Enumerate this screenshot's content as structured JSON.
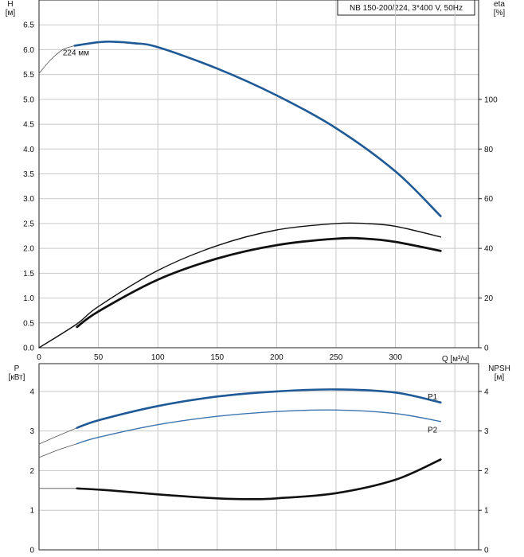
{
  "colors": {
    "blue": "#1f5a96",
    "blue_light": "#3c74ae",
    "black": "#111111",
    "grid": "#c8c8c8"
  },
  "chart_data": [
    {
      "type": "line",
      "title": "NB 150-200/224, 3*400 V, 50Hz",
      "ylabel_left": "H",
      "ylabel_left_unit": "[м]",
      "ylabel_right": "eta",
      "ylabel_right_unit": "[%]",
      "xlabel": "Q [м³/ч]",
      "xlim": [
        0,
        370
      ],
      "ylim": [
        0,
        7.0
      ],
      "ylim_right": [
        0,
        140
      ],
      "xticks": [
        "0",
        "50",
        "100",
        "150",
        "200",
        "250",
        "300"
      ],
      "yticks": [
        "0.0",
        "0.5",
        "1.0",
        "1.5",
        "2.0",
        "2.5",
        "3.0",
        "3.5",
        "4.0",
        "4.5",
        "5.0",
        "5.5",
        "6.0",
        "6.5"
      ],
      "yticks_right": [
        "0",
        "20",
        "40",
        "60",
        "80",
        "100"
      ],
      "grid": true,
      "annotations": [
        {
          "text": "224 мм",
          "x": 20,
          "y": 5.95
        }
      ],
      "series": [
        {
          "key": "head_ext",
          "axis": "left",
          "width": 0.8,
          "color": "#555555",
          "x": [
            0,
            10,
            20,
            30
          ],
          "y": [
            5.52,
            5.8,
            6.0,
            6.08
          ]
        },
        {
          "key": "head",
          "axis": "left",
          "width": 2.6,
          "color": "blue",
          "x": [
            30,
            50,
            62,
            80,
            100,
            150,
            200,
            250,
            300,
            338
          ],
          "y": [
            6.08,
            6.15,
            6.16,
            6.13,
            6.05,
            5.62,
            5.08,
            4.42,
            3.55,
            2.65
          ]
        },
        {
          "key": "eta_thin",
          "axis": "right",
          "width": 1.4,
          "color": "black",
          "x": [
            0,
            32,
            50,
            100,
            150,
            200,
            250,
            275,
            300,
            338
          ],
          "y": [
            0,
            9.6,
            16.6,
            31.1,
            41.1,
            47.4,
            50.0,
            50.0,
            48.9,
            44.6
          ]
        },
        {
          "key": "eta_thick",
          "axis": "right",
          "width": 2.8,
          "color": "black",
          "x": [
            32,
            50,
            100,
            150,
            200,
            250,
            275,
            300,
            338
          ],
          "y": [
            8.4,
            14.6,
            27.4,
            35.9,
            41.3,
            43.9,
            43.9,
            42.6,
            39.0
          ]
        }
      ]
    },
    {
      "type": "line",
      "ylabel_left": "P",
      "ylabel_left_unit": "[кВт]",
      "ylabel_right": "NPSH",
      "ylabel_right_unit": "[м]",
      "xlim": [
        0,
        370
      ],
      "ylim": [
        0,
        4.7
      ],
      "yticks": [
        "0",
        "1",
        "2",
        "3",
        "4"
      ],
      "yticks_right": [
        "0",
        "1",
        "2",
        "3",
        "4"
      ],
      "grid": true,
      "series": [
        {
          "key": "p1_ext",
          "axis": "left",
          "width": 0.8,
          "color": "#555555",
          "x": [
            0,
            16,
            32
          ],
          "y": [
            2.67,
            2.88,
            3.08
          ]
        },
        {
          "key": "p1",
          "axis": "left",
          "width": 2.6,
          "color": "blue",
          "name": "P1",
          "x": [
            32,
            50,
            100,
            150,
            200,
            250,
            300,
            338
          ],
          "y": [
            3.08,
            3.27,
            3.63,
            3.87,
            4.0,
            4.05,
            3.97,
            3.72
          ]
        },
        {
          "key": "p2_ext",
          "axis": "left",
          "width": 0.8,
          "color": "#555555",
          "x": [
            0,
            16,
            32
          ],
          "y": [
            2.33,
            2.52,
            2.68
          ]
        },
        {
          "key": "p2",
          "axis": "left",
          "width": 1.4,
          "color": "blue_light",
          "name": "P2",
          "x": [
            32,
            50,
            100,
            150,
            200,
            250,
            300,
            338
          ],
          "y": [
            2.68,
            2.84,
            3.16,
            3.37,
            3.49,
            3.53,
            3.44,
            3.24
          ]
        },
        {
          "key": "npsh_ext",
          "axis": "left",
          "width": 0.8,
          "color": "#555555",
          "x": [
            0,
            16,
            32
          ],
          "y": [
            1.55,
            1.55,
            1.55
          ]
        },
        {
          "key": "npsh",
          "axis": "left",
          "width": 2.6,
          "color": "black",
          "x": [
            32,
            60,
            100,
            150,
            180,
            200,
            250,
            300,
            338
          ],
          "y": [
            1.55,
            1.5,
            1.4,
            1.3,
            1.28,
            1.3,
            1.43,
            1.77,
            2.28
          ]
        }
      ]
    }
  ]
}
